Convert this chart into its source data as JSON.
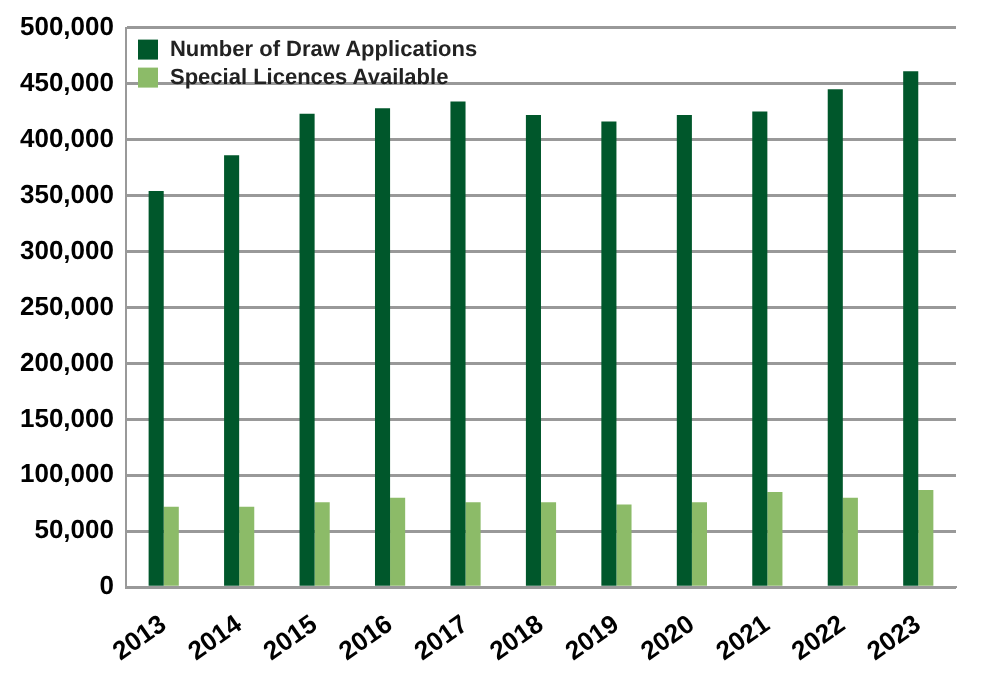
{
  "chart_data": {
    "type": "bar",
    "categories": [
      "2013",
      "2014",
      "2015",
      "2016",
      "2017",
      "2018",
      "2019",
      "2020",
      "2021",
      "2022",
      "2023"
    ],
    "series": [
      {
        "name": "Number of Draw Applications",
        "color": "#00572b",
        "values": [
          354000,
          386000,
          423000,
          428000,
          434000,
          422000,
          416000,
          422000,
          425000,
          445000,
          461000
        ]
      },
      {
        "name": "Special Licences Available",
        "color": "#8cbb68",
        "values": [
          72000,
          72000,
          76000,
          80000,
          76000,
          76000,
          74000,
          76000,
          85000,
          80000,
          87000
        ]
      }
    ],
    "ylim": [
      0,
      500000
    ],
    "yticks": [
      0,
      {
        "value": 50000,
        "label": "50,000"
      },
      {
        "value": 100000,
        "label": "100,000"
      },
      {
        "value": 150000,
        "label": "150,000"
      },
      {
        "value": 200000,
        "label": "200,000"
      },
      {
        "value": 250000,
        "label": "250,000"
      },
      {
        "value": 300000,
        "label": "300,000"
      },
      {
        "value": 350000,
        "label": "350,000"
      },
      {
        "value": 400000,
        "label": "400,000"
      },
      {
        "value": 450000,
        "label": "450,000"
      },
      {
        "value": 500000,
        "label": "500,000"
      }
    ],
    "grid": "y",
    "legend": "top left"
  }
}
